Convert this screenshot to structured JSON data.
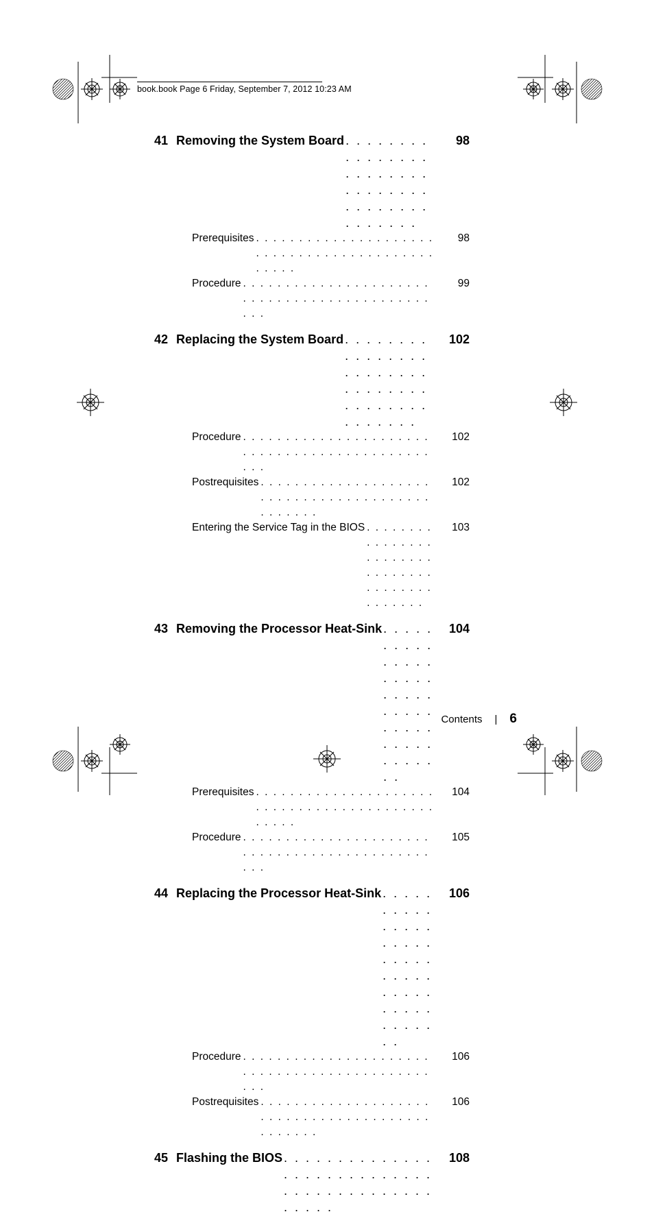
{
  "header": {
    "text": "book.book  Page 6  Friday, September 7, 2012  10:23 AM"
  },
  "toc": [
    {
      "num": "41",
      "title": "Removing the System Board",
      "page": "98",
      "subs": [
        {
          "title": "Prerequisites",
          "page": "98"
        },
        {
          "title": "Procedure",
          "page": "99"
        }
      ]
    },
    {
      "num": "42",
      "title": "Replacing the System Board",
      "page": "102",
      "subs": [
        {
          "title": "Procedure",
          "page": "102"
        },
        {
          "title": "Postrequisites",
          "page": "102"
        },
        {
          "title": "Entering the Service Tag in the BIOS",
          "page": "103"
        }
      ]
    },
    {
      "num": "43",
      "title": "Removing the Processor Heat-Sink",
      "page": "104",
      "subs": [
        {
          "title": "Prerequisites",
          "page": "104"
        },
        {
          "title": "Procedure",
          "page": "105"
        }
      ]
    },
    {
      "num": "44",
      "title": "Replacing the Processor Heat-Sink",
      "page": "106",
      "subs": [
        {
          "title": "Procedure",
          "page": "106"
        },
        {
          "title": "Postrequisites",
          "page": "106"
        }
      ]
    },
    {
      "num": "45",
      "title": "Flashing the BIOS",
      "page": "108",
      "subs": []
    }
  ],
  "footer": {
    "label": "Contents",
    "page": "6"
  },
  "marks": {
    "crosshair_color": "#000000",
    "hatched_fill": "#555555"
  }
}
